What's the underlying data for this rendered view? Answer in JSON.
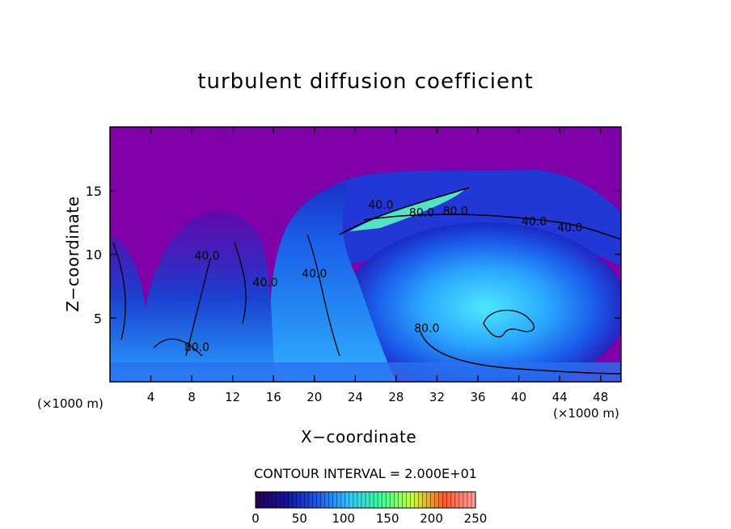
{
  "chart_data": {
    "type": "heatmap",
    "title": "turbulent diffusion coefficient",
    "xlabel": "X−coordinate",
    "ylabel": "Z−coordinate",
    "x_unit": "(×1000 m)",
    "z_unit": "(×1000 m)",
    "xlim": [
      0,
      50
    ],
    "ylim": [
      0,
      20
    ],
    "x_ticks": [
      4,
      8,
      12,
      16,
      20,
      24,
      28,
      32,
      36,
      40,
      44,
      48
    ],
    "y_ticks": [
      5,
      10,
      15
    ],
    "contour_interval_text": "CONTOUR INTERVAL = 2.000E+01",
    "colorbar": {
      "min": 0,
      "max": 250,
      "ticks": [
        0,
        50,
        100,
        150,
        200,
        250
      ],
      "colors": [
        "#2a0050",
        "#1414a0",
        "#1e5ae6",
        "#32c8ff",
        "#3cff9a",
        "#c8ff3c",
        "#ff5a28",
        "#ffa0a0"
      ]
    },
    "background_color": "#7f00a8",
    "contour_labels": [
      {
        "text": "40.0",
        "x": 26.5,
        "z": 13.6
      },
      {
        "text": "80.0",
        "x": 30.5,
        "z": 13.0
      },
      {
        "text": "80.0",
        "x": 33.8,
        "z": 13.1
      },
      {
        "text": "40.0",
        "x": 41.5,
        "z": 12.3
      },
      {
        "text": "40.0",
        "x": 45.0,
        "z": 11.8
      },
      {
        "text": "40.0",
        "x": 9.5,
        "z": 9.6
      },
      {
        "text": "40.0",
        "x": 15.2,
        "z": 7.5
      },
      {
        "text": "40.0",
        "x": 20.0,
        "z": 8.2
      },
      {
        "text": "80.0",
        "x": 31.0,
        "z": 3.9
      },
      {
        "text": "80.0",
        "x": 8.5,
        "z": 2.4
      }
    ]
  }
}
